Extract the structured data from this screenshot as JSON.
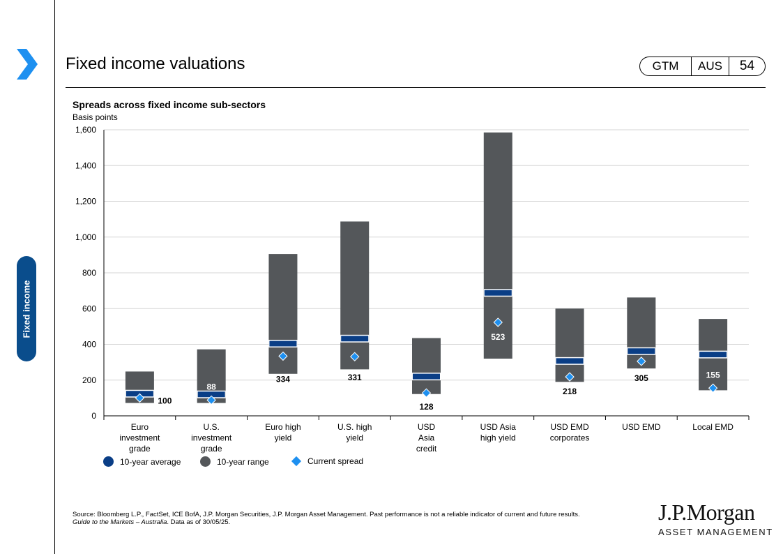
{
  "header": {
    "title": "Fixed income valuations",
    "badge": {
      "guide": "GTM",
      "region": "AUS",
      "page": "54"
    }
  },
  "sidebar": {
    "section": "Fixed income"
  },
  "colors": {
    "range": "#54575a",
    "average": "#0a3e86",
    "current": "#1e90f0",
    "section_tab": "#0a4d8c",
    "accent_chevron": "#1e90f0"
  },
  "chart_data": {
    "type": "bar",
    "title": "Spreads across fixed income sub-sectors",
    "ylabel": "Basis points",
    "ylim": [
      0,
      1600
    ],
    "yticks": [
      0,
      200,
      400,
      600,
      800,
      1000,
      1200,
      1400,
      1600
    ],
    "ytick_labels": [
      "0",
      "200",
      "400",
      "600",
      "800",
      "1,000",
      "1,200",
      "1,400",
      "1,600"
    ],
    "grid": true,
    "legend_position": "bottom-left",
    "categories": [
      [
        "Euro",
        "investment",
        "grade"
      ],
      [
        "U.S.",
        "investment",
        "grade"
      ],
      [
        "Euro high",
        "yield"
      ],
      [
        "U.S. high",
        "yield"
      ],
      [
        "USD",
        "Asia",
        "credit"
      ],
      [
        "USD Asia",
        "high yield"
      ],
      [
        "USD EMD",
        "corporates"
      ],
      [
        "USD EMD"
      ],
      [
        "Local EMD"
      ]
    ],
    "series": [
      {
        "name": "10-year range",
        "low": [
          72,
          72,
          235,
          260,
          122,
          320,
          190,
          265,
          143
        ],
        "high": [
          248,
          372,
          905,
          1087,
          435,
          1585,
          600,
          662,
          542
        ]
      },
      {
        "name": "10-year average",
        "values": [
          124,
          120,
          404,
          432,
          220,
          688,
          307,
          362,
          343
        ]
      },
      {
        "name": "Current spread",
        "values": [
          100,
          88,
          334,
          331,
          128,
          523,
          218,
          305,
          155
        ]
      }
    ],
    "data_labels": [
      "100",
      "88",
      "334",
      "331",
      "128",
      "523",
      "218",
      "305",
      "155"
    ]
  },
  "legend": {
    "average": "10-year  average",
    "range": "10-year  range",
    "current": "Current  spread"
  },
  "footer": {
    "source": "Source: Bloomberg L.P., FactSet, ICE  BofA, J.P. Morgan Securities, J.P. Morgan Asset Management. Past performance is not a reliable indicator of current and future results.",
    "guide": "Guide to the Markets – Australia",
    "asof": ". Data as of 30/05/25.",
    "logo_top": "J.P.Morgan",
    "logo_bottom": "ASSET MANAGEMENT"
  }
}
